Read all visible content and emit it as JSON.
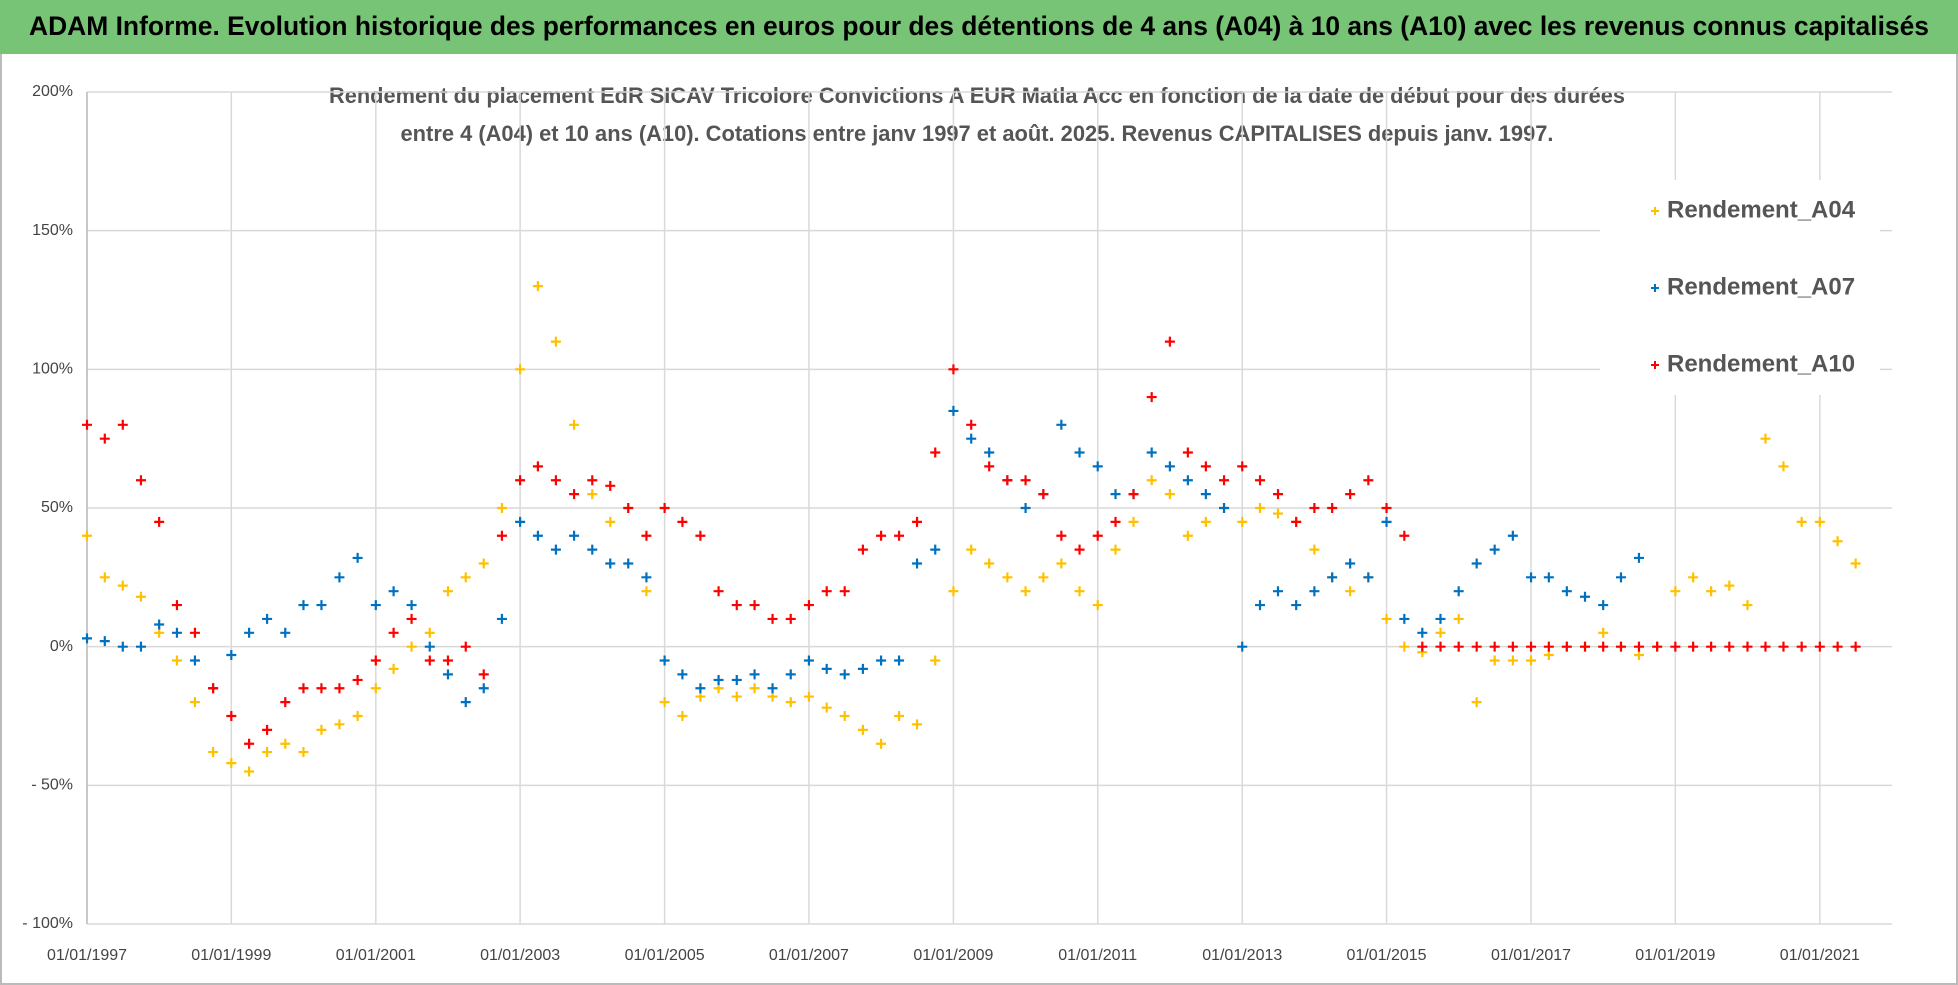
{
  "header": {
    "title": "ADAM Informe. Evolution historique des performances en euros pour des détentions de 4 ans (A04) à 10 ans (A10) avec les revenus connus capitalisés"
  },
  "chart_data": {
    "type": "scatter",
    "title": [
      "Rendement du placement EdR SICAV Tricolore Convictions A EUR Matla Acc en fonction de la date de début pour des durées",
      "entre 4 (A04) et 10 ans (A10).  Cotations entre janv 1997 et août. 2025. Revenus CAPITALISES depuis janv. 1997."
    ],
    "x": [
      "1997-01-01",
      "1997-04-01",
      "1997-07-01",
      "1997-10-01",
      "1998-01-01",
      "1998-04-01",
      "1998-07-01",
      "1998-10-01",
      "1999-01-01",
      "1999-04-01",
      "1999-07-01",
      "1999-10-01",
      "2000-01-01",
      "2000-04-01",
      "2000-07-01",
      "2000-10-01",
      "2001-01-01",
      "2001-04-01",
      "2001-07-01",
      "2001-10-01",
      "2002-01-01",
      "2002-04-01",
      "2002-07-01",
      "2002-10-01",
      "2003-01-01",
      "2003-04-01",
      "2003-07-01",
      "2003-10-01",
      "2004-01-01",
      "2004-04-01",
      "2004-07-01",
      "2004-10-01",
      "2005-01-01",
      "2005-04-01",
      "2005-07-01",
      "2005-10-01",
      "2006-01-01",
      "2006-04-01",
      "2006-07-01",
      "2006-10-01",
      "2007-01-01",
      "2007-04-01",
      "2007-07-01",
      "2007-10-01",
      "2008-01-01",
      "2008-04-01",
      "2008-07-01",
      "2008-10-01",
      "2009-01-01",
      "2009-04-01",
      "2009-07-01",
      "2009-10-01",
      "2010-01-01",
      "2010-04-01",
      "2010-07-01",
      "2010-10-01",
      "2011-01-01",
      "2011-04-01",
      "2011-07-01",
      "2011-10-01",
      "2012-01-01",
      "2012-04-01",
      "2012-07-01",
      "2012-10-01",
      "2013-01-01",
      "2013-04-01",
      "2013-07-01",
      "2013-10-01",
      "2014-01-01",
      "2014-04-01",
      "2014-07-01",
      "2014-10-01",
      "2015-01-01",
      "2015-04-01",
      "2015-07-01",
      "2015-10-01",
      "2016-01-01",
      "2016-04-01",
      "2016-07-01",
      "2016-10-01",
      "2017-01-01",
      "2017-04-01",
      "2017-07-01",
      "2017-10-01",
      "2018-01-01",
      "2018-04-01",
      "2018-07-01",
      "2018-10-01",
      "2019-01-01",
      "2019-04-01",
      "2019-07-01",
      "2019-10-01",
      "2020-01-01",
      "2020-04-01",
      "2020-07-01",
      "2020-10-01",
      "2021-01-01",
      "2021-04-01",
      "2021-07-01"
    ],
    "series": [
      {
        "name": "Rendement_A04",
        "color": "#ffc000",
        "values": [
          40,
          25,
          22,
          18,
          5,
          -5,
          -20,
          -38,
          -42,
          -45,
          -38,
          -35,
          -38,
          -30,
          -28,
          -25,
          -15,
          -8,
          0,
          5,
          20,
          25,
          30,
          50,
          100,
          130,
          110,
          80,
          55,
          45,
          50,
          20,
          -20,
          -25,
          -18,
          -15,
          -18,
          -15,
          -18,
          -20,
          -18,
          -22,
          -25,
          -30,
          -35,
          -25,
          -28,
          -5,
          20,
          35,
          30,
          25,
          20,
          25,
          30,
          20,
          15,
          35,
          45,
          60,
          55,
          40,
          45,
          50,
          45,
          50,
          48,
          45,
          35,
          25,
          20,
          25,
          10,
          0,
          -2,
          5,
          10,
          -20,
          -5,
          -5,
          -5,
          -3,
          0,
          0,
          5,
          0,
          -3,
          0,
          20,
          25,
          20,
          22,
          15,
          75,
          65,
          45,
          45,
          38,
          30
        ]
      },
      {
        "name": "Rendement_A07",
        "color": "#0070c0",
        "values": [
          3,
          2,
          0,
          0,
          8,
          5,
          -5,
          -15,
          -3,
          5,
          10,
          5,
          15,
          15,
          25,
          32,
          15,
          20,
          15,
          0,
          -10,
          -20,
          -15,
          10,
          45,
          40,
          35,
          40,
          35,
          30,
          30,
          25,
          -5,
          -10,
          -15,
          -12,
          -12,
          -10,
          -15,
          -10,
          -5,
          -8,
          -10,
          -8,
          -5,
          -5,
          30,
          35,
          85,
          75,
          70,
          60,
          50,
          55,
          80,
          70,
          65,
          55,
          55,
          70,
          65,
          60,
          55,
          50,
          0,
          15,
          20,
          15,
          20,
          25,
          30,
          25,
          45,
          10,
          5,
          10,
          20,
          30,
          35,
          40,
          25,
          25,
          20,
          18,
          15,
          25,
          32,
          null,
          null,
          null,
          null,
          null,
          null,
          null,
          null,
          null,
          null,
          null,
          null
        ]
      },
      {
        "name": "Rendement_A10",
        "color": "#ff0000",
        "values": [
          80,
          75,
          80,
          60,
          45,
          15,
          5,
          -15,
          -25,
          -35,
          -30,
          -20,
          -15,
          -15,
          -15,
          -12,
          -5,
          5,
          10,
          -5,
          -5,
          0,
          -10,
          40,
          60,
          65,
          60,
          55,
          60,
          58,
          50,
          40,
          50,
          45,
          40,
          20,
          15,
          15,
          10,
          10,
          15,
          20,
          20,
          35,
          40,
          40,
          45,
          70,
          100,
          80,
          65,
          60,
          60,
          55,
          40,
          35,
          40,
          45,
          55,
          90,
          110,
          70,
          65,
          60,
          65,
          60,
          55,
          45,
          50,
          50,
          55,
          60,
          50,
          40,
          0,
          0,
          0,
          0,
          0,
          0,
          0,
          0,
          0,
          0,
          0,
          0,
          0,
          0,
          0,
          0,
          0,
          0,
          0,
          0,
          0,
          0,
          0,
          0,
          0
        ]
      }
    ],
    "xlim": [
      "1997-01-01",
      "2022-01-01"
    ],
    "xticks": [
      {
        "value": "1997-01-01",
        "label": "01/01/1997"
      },
      {
        "value": "1999-01-01",
        "label": "01/01/1999"
      },
      {
        "value": "2001-01-01",
        "label": "01/01/2001"
      },
      {
        "value": "2003-01-01",
        "label": "01/01/2003"
      },
      {
        "value": "2005-01-01",
        "label": "01/01/2005"
      },
      {
        "value": "2007-01-01",
        "label": "01/01/2007"
      },
      {
        "value": "2009-01-01",
        "label": "01/01/2009"
      },
      {
        "value": "2011-01-01",
        "label": "01/01/2011"
      },
      {
        "value": "2013-01-01",
        "label": "01/01/2013"
      },
      {
        "value": "2015-01-01",
        "label": "01/01/2015"
      },
      {
        "value": "2017-01-01",
        "label": "01/01/2017"
      },
      {
        "value": "2019-01-01",
        "label": "01/01/2019"
      },
      {
        "value": "2021-01-01",
        "label": "01/01/2021"
      }
    ],
    "ylim": [
      -100,
      200
    ],
    "yticks": [
      {
        "value": -100,
        "label": "- 100%"
      },
      {
        "value": -50,
        "label": "- 50%"
      },
      {
        "value": 0,
        "label": "0%"
      },
      {
        "value": 50,
        "label": "50%"
      },
      {
        "value": 100,
        "label": "100%"
      },
      {
        "value": 150,
        "label": "150%"
      },
      {
        "value": 200,
        "label": "200%"
      }
    ],
    "grid": true,
    "marker": "+",
    "legend": "right"
  }
}
